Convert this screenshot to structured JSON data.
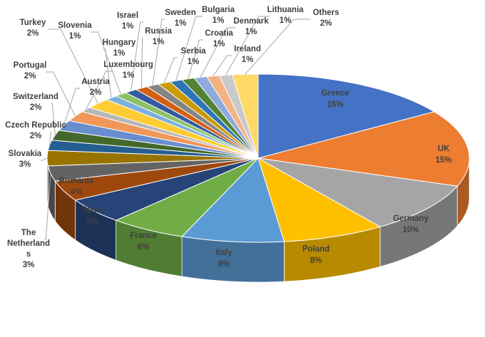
{
  "chart_data": {
    "type": "pie",
    "title": "",
    "slices": [
      {
        "name": "Greece",
        "value": 16,
        "label": "16%",
        "color": "#4472c4"
      },
      {
        "name": "UK",
        "value": 15,
        "label": "15%",
        "color": "#ed7d31"
      },
      {
        "name": "Germany",
        "value": 10,
        "label": "10%",
        "color": "#a5a5a5"
      },
      {
        "name": "Poland",
        "value": 8,
        "label": "8%",
        "color": "#ffc000"
      },
      {
        "name": "Italy",
        "value": 8,
        "label": "8%",
        "color": "#5b9bd5"
      },
      {
        "name": "France",
        "value": 6,
        "label": "6%",
        "color": "#70ad47"
      },
      {
        "name": "Spain",
        "value": 5,
        "label": "5%",
        "color": "#264478"
      },
      {
        "name": "Romania",
        "value": 4,
        "label": "4%",
        "color": "#9e480e"
      },
      {
        "name": "The Netherlands",
        "value": 3,
        "label": "3%",
        "color": "#636363"
      },
      {
        "name": "Slovakia",
        "value": 3,
        "label": "3%",
        "color": "#997300"
      },
      {
        "name": "Czech Republic",
        "value": 2,
        "label": "2%",
        "color": "#255e91"
      },
      {
        "name": "Switzerland",
        "value": 2,
        "label": "2%",
        "color": "#43682b"
      },
      {
        "name": "Austria",
        "value": 2,
        "label": "2%",
        "color": "#698ed0"
      },
      {
        "name": "Portugal",
        "value": 2,
        "label": "2%",
        "color": "#f1975a"
      },
      {
        "name": "Luxembourg",
        "value": 1,
        "label": "1%",
        "color": "#b7b7b7"
      },
      {
        "name": "Turkey",
        "value": 2,
        "label": "2%",
        "color": "#ffcd33"
      },
      {
        "name": "Hungary",
        "value": 1,
        "label": "1%",
        "color": "#7cafdd"
      },
      {
        "name": "Slovenia",
        "value": 1,
        "label": "1%",
        "color": "#8cc168"
      },
      {
        "name": "Israel",
        "value": 1,
        "label": "1%",
        "color": "#335aa1"
      },
      {
        "name": "Russia",
        "value": 1,
        "label": "1%",
        "color": "#d26012"
      },
      {
        "name": "Sweden",
        "value": 1,
        "label": "1%",
        "color": "#848484"
      },
      {
        "name": "Serbia",
        "value": 1,
        "label": "1%",
        "color": "#cc9a00"
      },
      {
        "name": "Bulgaria",
        "value": 1,
        "label": "1%",
        "color": "#2e75b6"
      },
      {
        "name": "Croatia",
        "value": 1,
        "label": "1%",
        "color": "#548235"
      },
      {
        "name": "Denmark",
        "value": 1,
        "label": "1%",
        "color": "#8faadc"
      },
      {
        "name": "Ireland",
        "value": 1,
        "label": "1%",
        "color": "#f4b183"
      },
      {
        "name": "Lithuania",
        "value": 1,
        "label": "1%",
        "color": "#c9c9c9"
      },
      {
        "name": "Others",
        "value": 2,
        "label": "2%",
        "color": "#ffd966"
      }
    ],
    "legend": "none",
    "style": "3d-pie"
  }
}
